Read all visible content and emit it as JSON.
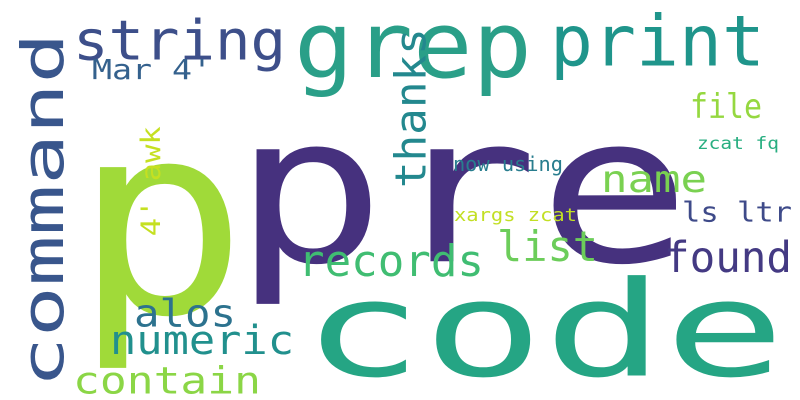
{
  "words": [
    {
      "text": "p",
      "color": "#a0da39"
    },
    {
      "text": "pre",
      "color": "#46317e"
    },
    {
      "text": "code",
      "color": "#25a584"
    },
    {
      "text": "grep",
      "color": "#2a9f88"
    },
    {
      "text": "print",
      "color": "#1f958b"
    },
    {
      "text": "command",
      "color": "#39568c"
    },
    {
      "text": "string",
      "color": "#3d4f8a"
    },
    {
      "text": "Mar 4'",
      "color": "#34618d"
    },
    {
      "text": "thanks",
      "color": "#23888e"
    },
    {
      "text": "file",
      "color": "#95d840"
    },
    {
      "text": "4' awk",
      "color": "#c5e021"
    },
    {
      "text": "zcat fq",
      "color": "#28ae80"
    },
    {
      "text": "now using",
      "color": "#287d8e"
    },
    {
      "text": "name",
      "color": "#7ad151"
    },
    {
      "text": "ls ltr",
      "color": "#3e4a89"
    },
    {
      "text": "xargs zcat",
      "color": "#c2df23"
    },
    {
      "text": "list",
      "color": "#6ccd5a"
    },
    {
      "text": "found",
      "color": "#443a83"
    },
    {
      "text": "records",
      "color": "#40bd72"
    },
    {
      "text": "alos",
      "color": "#2c728e"
    },
    {
      "text": "numeric",
      "color": "#21908d"
    },
    {
      "text": "contain",
      "color": "#8bd646"
    }
  ]
}
